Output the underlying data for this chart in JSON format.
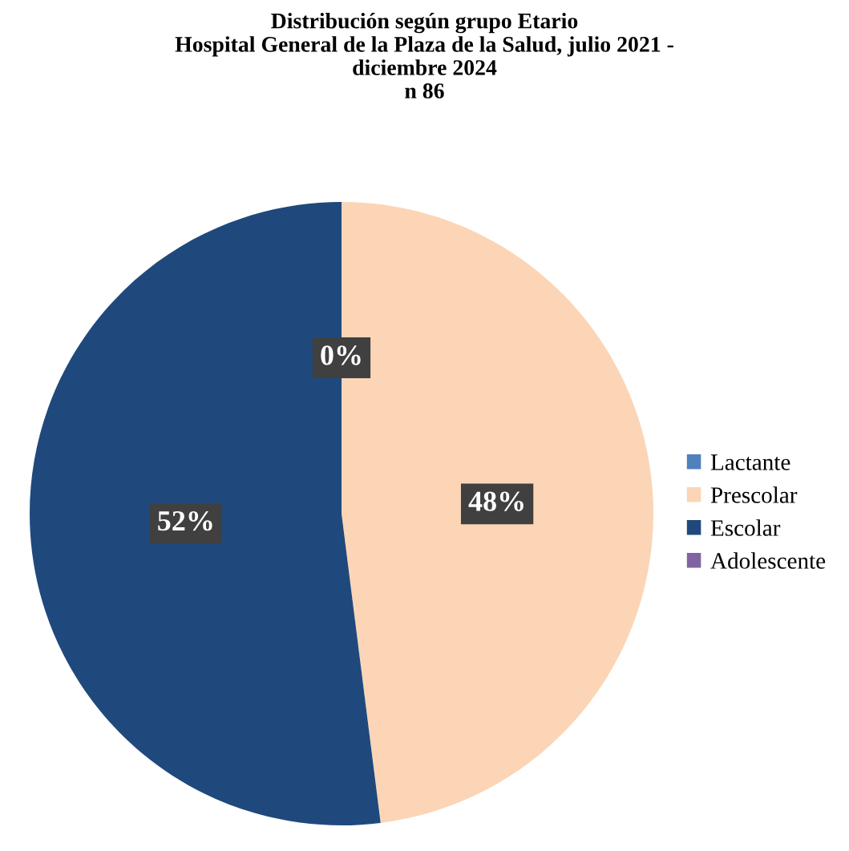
{
  "chart_data": {
    "type": "pie",
    "title": "Distribución según grupo Etario\nHospital General de la Plaza de la Salud, julio 2021 -\ndiciembre 2024\nn 86",
    "categories": [
      "Lactante",
      "Prescolar",
      "Escolar",
      "Adolescente"
    ],
    "values": [
      0,
      48,
      52,
      0
    ],
    "colors": [
      "#4f81bd",
      "#fbd5b5",
      "#1f497d",
      "#8064a2"
    ],
    "value_labels": [
      "0%",
      "48%",
      "52%",
      null
    ],
    "legend": "right"
  }
}
